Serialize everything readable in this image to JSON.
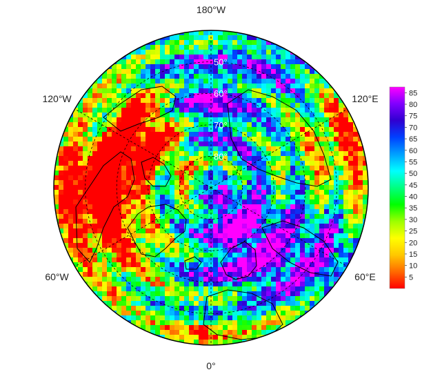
{
  "map": {
    "projection": "north-polar-stereographic",
    "longitude_labels": [
      {
        "id": "lon-180",
        "text": "180°W",
        "lon": 180
      },
      {
        "id": "lon-120w",
        "text": "120°W",
        "lon": -120
      },
      {
        "id": "lon-120e",
        "text": "120°E",
        "lon": 120
      },
      {
        "id": "lon-60w",
        "text": "60°W",
        "lon": -60
      },
      {
        "id": "lon-60e",
        "text": "60°E",
        "lon": 60
      },
      {
        "id": "lon-0",
        "text": "0°",
        "lon": 0
      }
    ],
    "latitude_labels": [
      {
        "id": "lat-50",
        "text": "50°",
        "lat": 50
      },
      {
        "id": "lat-60",
        "text": "60°",
        "lat": 60
      },
      {
        "id": "lat-70",
        "text": "70°",
        "lat": 70
      },
      {
        "id": "lat-80",
        "text": "80°",
        "lat": 80
      }
    ],
    "colorbar": {
      "ticks": [
        "85",
        "80",
        "75",
        "70",
        "65",
        "60",
        "55",
        "50",
        "45",
        "40",
        "35",
        "30",
        "25",
        "20",
        "15",
        "10",
        "5"
      ],
      "min": 0,
      "max": 87.5,
      "colors": [
        "#ff0000",
        "#ff6a00",
        "#ffc800",
        "#ffff00",
        "#9cff00",
        "#00ff00",
        "#00ff80",
        "#00ffff",
        "#00a0ff",
        "#0040ff",
        "#3000d0",
        "#8000ff",
        "#ff00ff"
      ]
    }
  }
}
